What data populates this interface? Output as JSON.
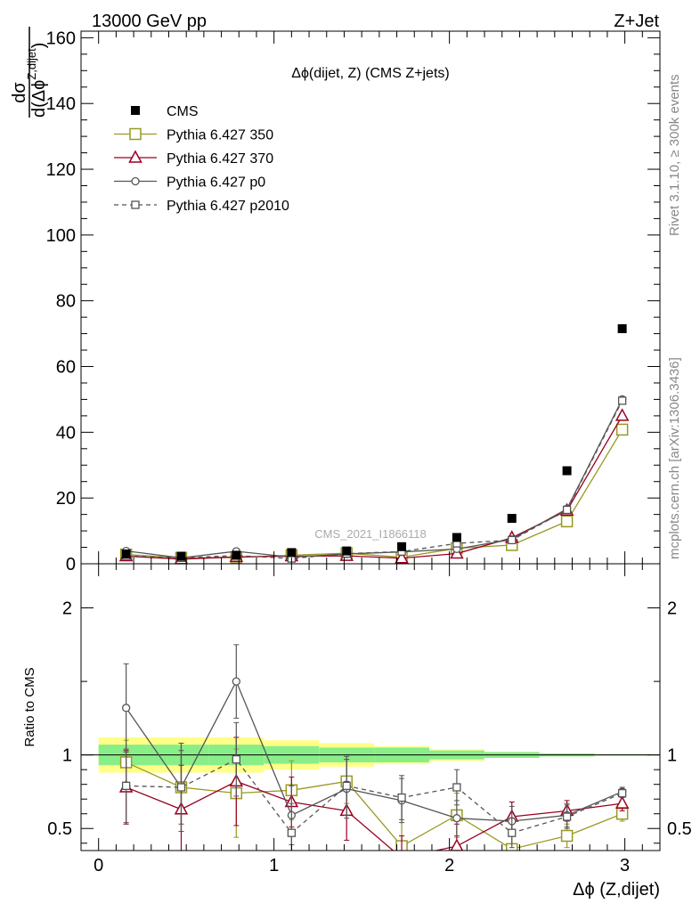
{
  "header": {
    "left": "13000 GeV pp",
    "right": "Z+Jet"
  },
  "side_text": {
    "rivet": "Rivet 3.1.10, ≥ 300k events",
    "mcplots": "mcplots.cern.ch [arXiv:1306.3436]"
  },
  "chart_data": [
    {
      "type": "scatter",
      "title": "Δϕ(dijet, Z)  (CMS Z+jets)",
      "watermark": "CMS_2021_I1866118",
      "ylabel_main": "dσ",
      "ylabel_den_prefix": "d(Δϕ",
      "ylabel_den_sup": "Z,dijet",
      "ylabel_den_suffix": ")",
      "xlim": [
        -0.1,
        3.2
      ],
      "ylim": [
        0,
        162
      ],
      "yticks": [
        "0",
        "20",
        "40",
        "60",
        "80",
        "100",
        "120",
        "140",
        "160"
      ],
      "legend_position": "top-left",
      "x": [
        0.157,
        0.471,
        0.785,
        1.1,
        1.414,
        1.728,
        2.042,
        2.356,
        2.67,
        2.985
      ],
      "series": [
        {
          "name": "CMS",
          "color": "#000000",
          "marker": "filled-square",
          "values": [
            3.0,
            2.3,
            2.6,
            3.4,
            3.9,
            5.2,
            8.0,
            13.8,
            28.3,
            71.5
          ]
        },
        {
          "name": "Pythia 6.427 350",
          "color": "#999922",
          "marker": "open-square",
          "line": "solid",
          "values": [
            2.8,
            1.8,
            1.9,
            2.6,
            3.2,
            2.0,
            4.7,
            5.7,
            12.9,
            40.8
          ]
        },
        {
          "name": "Pythia 6.427 370",
          "color": "#990022",
          "marker": "open-triangle",
          "line": "solid",
          "values": [
            2.3,
            1.4,
            2.1,
            2.3,
            2.4,
            1.7,
            3.1,
            7.9,
            16.2,
            45.0
          ]
        },
        {
          "name": "Pythia 6.427 p0",
          "color": "#555555",
          "marker": "open-circle",
          "line": "solid",
          "values": [
            3.9,
            1.8,
            3.8,
            2.0,
            3.0,
            3.6,
            4.5,
            7.4,
            16.7,
            50.0
          ]
        },
        {
          "name": "Pythia 6.427 p2010",
          "color": "#555555",
          "marker": "open-square-small",
          "line": "dashed",
          "values": [
            2.4,
            1.8,
            2.5,
            1.6,
            3.1,
            3.7,
            6.2,
            7.2,
            16.4,
            49.6
          ]
        }
      ]
    },
    {
      "type": "scatter",
      "ylabel": "Ratio to CMS",
      "xlabel": "Δϕ (Z,dijet)",
      "xlim": [
        -0.1,
        3.2
      ],
      "ylim": [
        0.35,
        2.3
      ],
      "yticks": [
        "0.5",
        "1",
        "2"
      ],
      "xticks": [
        "0",
        "1",
        "2",
        "3"
      ],
      "band_green_halfwidth": [
        0.07,
        0.07,
        0.07,
        0.06,
        0.05,
        0.05,
        0.03,
        0.02,
        0.01,
        0.005
      ],
      "band_yellow_halfwidth": [
        0.12,
        0.12,
        0.12,
        0.1,
        0.08,
        0.06,
        0.04,
        0.02,
        0.01,
        0.005
      ],
      "series": [
        {
          "name": "Pythia 6.427 350",
          "values": [
            0.95,
            0.78,
            0.74,
            0.76,
            0.82,
            0.38,
            0.59,
            0.36,
            0.45,
            0.6
          ],
          "errors": [
            0.15,
            0.3,
            0.3,
            0.2,
            0.15,
            0.3,
            0.15,
            0.1,
            0.08,
            0.05
          ]
        },
        {
          "name": "Pythia 6.427 370",
          "values": [
            0.78,
            0.63,
            0.82,
            0.68,
            0.62,
            0.3,
            0.38,
            0.58,
            0.62,
            0.67
          ],
          "errors": [
            0.25,
            0.3,
            0.3,
            0.17,
            0.2,
            0.15,
            0.15,
            0.1,
            0.07,
            0.05
          ]
        },
        {
          "name": "Pythia 6.427 p0",
          "values": [
            1.32,
            0.78,
            1.5,
            0.59,
            0.77,
            0.69,
            0.57,
            0.55,
            0.59,
            0.75
          ],
          "errors": [
            0.3,
            0.25,
            0.25,
            0.2,
            0.2,
            0.15,
            0.12,
            0.1,
            0.08,
            0.03
          ]
        },
        {
          "name": "Pythia 6.427 p2010",
          "values": [
            0.79,
            0.78,
            0.97,
            0.47,
            0.79,
            0.71,
            0.78,
            0.47,
            0.58,
            0.74
          ],
          "errors": [
            0.25,
            0.3,
            0.25,
            0.2,
            0.2,
            0.15,
            0.12,
            0.1,
            0.08,
            0.03
          ]
        }
      ]
    }
  ]
}
